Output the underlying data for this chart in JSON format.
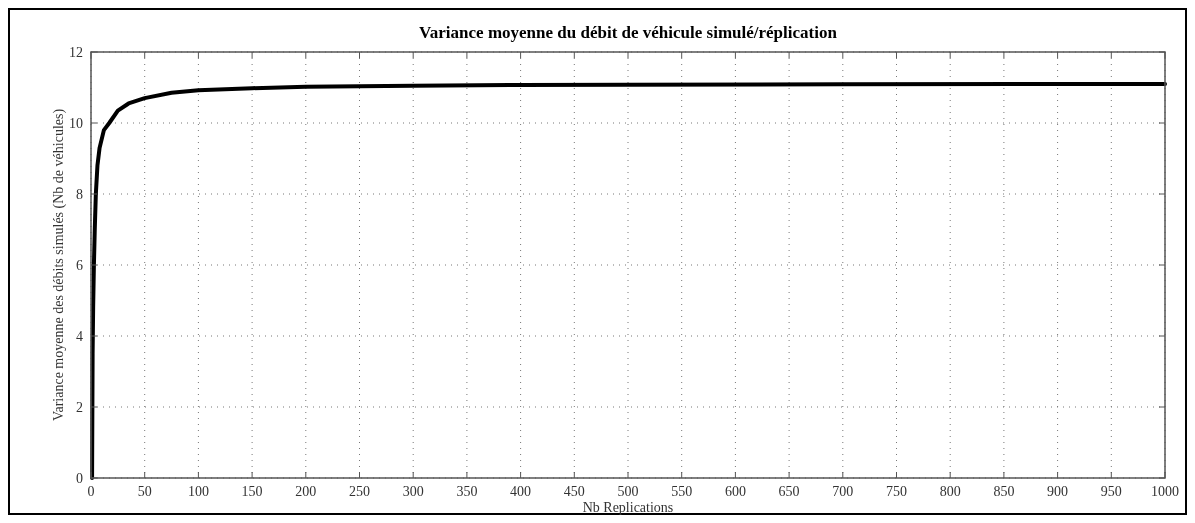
{
  "chart_data": {
    "type": "line",
    "title": "Variance moyenne du débit de véhicule simulé/réplication",
    "xlabel": "Nb Replications",
    "ylabel": "Variance moyenne des débits simulés (Nb de véhicules)",
    "xlim": [
      0,
      1000
    ],
    "xticks": [
      0,
      50,
      100,
      150,
      200,
      250,
      300,
      350,
      400,
      450,
      500,
      550,
      600,
      650,
      700,
      750,
      800,
      850,
      900,
      950,
      1000
    ],
    "ylim": [
      0,
      12
    ],
    "yticks": [
      0,
      2,
      4,
      6,
      8,
      10,
      12
    ],
    "grid": true,
    "line_style": "solid",
    "series": [
      {
        "color": "#000000",
        "x": [
          1,
          1.5,
          2,
          2.7,
          3.5,
          4.5,
          6,
          8,
          12,
          17,
          25,
          35,
          50,
          75,
          100,
          150,
          200,
          300,
          400,
          500,
          700,
          1000
        ],
        "values": [
          0,
          3.5,
          4.8,
          6,
          7,
          8,
          8.8,
          9.3,
          9.8,
          10,
          10.35,
          10.55,
          10.7,
          10.85,
          10.92,
          10.98,
          11.02,
          11.05,
          11.07,
          11.08,
          11.09,
          11.1
        ]
      }
    ]
  }
}
